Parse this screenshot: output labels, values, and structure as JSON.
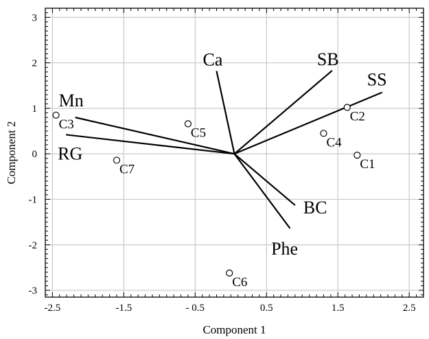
{
  "chart_data": {
    "type": "scatter",
    "title": "",
    "xlabel": "Component 1",
    "ylabel": "Component 2",
    "xlim": [
      -2.6,
      2.7
    ],
    "ylim": [
      -3.15,
      3.2
    ],
    "xticks": [
      -2.5,
      -1.5,
      -0.5,
      0.5,
      1.5,
      2.5
    ],
    "xtick_labels": [
      "-2.5",
      "-1.5",
      "- 0.5",
      "0.5",
      "1.5",
      "2.5"
    ],
    "yticks": [
      -3,
      -2,
      -1,
      0,
      1,
      2,
      3
    ],
    "ytick_labels": [
      "-3",
      "-2",
      "-1",
      "0",
      "1",
      "2",
      "3"
    ],
    "grid": true,
    "origin": [
      0.05,
      0.0
    ],
    "vectors": [
      {
        "name": "Ca",
        "x": -0.2,
        "y": 1.82
      },
      {
        "name": "SB",
        "x": 1.42,
        "y": 1.83
      },
      {
        "name": "SS",
        "x": 2.12,
        "y": 1.35
      },
      {
        "name": "Mn",
        "x": -2.18,
        "y": 0.8
      },
      {
        "name": "RG",
        "x": -2.31,
        "y": 0.42
      },
      {
        "name": "BC",
        "x": 0.9,
        "y": -1.13
      },
      {
        "name": "Phe",
        "x": 0.83,
        "y": -1.64
      }
    ],
    "points": [
      {
        "name": "C1",
        "x": 1.77,
        "y": -0.03
      },
      {
        "name": "C2",
        "x": 1.63,
        "y": 1.02
      },
      {
        "name": "C3",
        "x": -2.45,
        "y": 0.85
      },
      {
        "name": "C4",
        "x": 1.3,
        "y": 0.45
      },
      {
        "name": "C5",
        "x": -0.6,
        "y": 0.66
      },
      {
        "name": "C6",
        "x": -0.02,
        "y": -2.62
      },
      {
        "name": "C7",
        "x": -1.6,
        "y": -0.14
      }
    ]
  }
}
